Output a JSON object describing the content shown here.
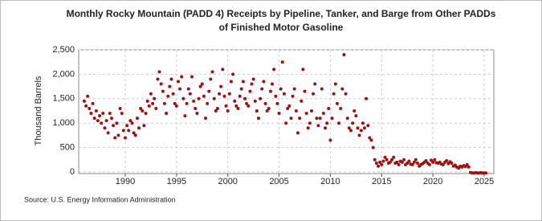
{
  "chart_data": {
    "type": "scatter",
    "title": [
      "Monthly Rocky Mountain (PADD 4) Receipts by Pipeline, Tanker, and Barge from Other PADDs",
      "of Finished Motor Gasoline"
    ],
    "y_label": "Thousand Barrels",
    "source": "Source: U.S. Energy Information Administration",
    "color": "#a01010",
    "grid": true,
    "xlim": [
      1985.46,
      2025.94
    ],
    "xticks": [
      1990,
      1995,
      2000,
      2005,
      2010,
      2015,
      2020,
      2025
    ],
    "ylim": [
      0,
      2500
    ],
    "yticks": [
      0,
      500,
      {
        "value": 1000,
        "label": "1,000"
      },
      {
        "value": 1500,
        "label": "1,500"
      },
      {
        "value": 2000,
        "label": "2,000"
      },
      {
        "value": 2500,
        "label": "2,500"
      }
    ],
    "x": [
      1986,
      1986.17,
      1986.33,
      1986.5,
      1986.67,
      1986.83,
      1987,
      1987.17,
      1987.33,
      1987.5,
      1987.67,
      1987.83,
      1988,
      1988.17,
      1988.33,
      1988.5,
      1988.67,
      1988.83,
      1989,
      1989.17,
      1989.33,
      1989.5,
      1989.67,
      1989.83,
      1990,
      1990.17,
      1990.33,
      1990.5,
      1990.67,
      1990.83,
      1991,
      1991.17,
      1991.33,
      1991.5,
      1991.67,
      1991.83,
      1992,
      1992.17,
      1992.33,
      1992.5,
      1992.67,
      1992.83,
      1993,
      1993.17,
      1993.33,
      1993.5,
      1993.67,
      1993.83,
      1994,
      1994.17,
      1994.33,
      1994.5,
      1994.67,
      1994.83,
      1995,
      1995.17,
      1995.33,
      1995.5,
      1995.67,
      1995.83,
      1996,
      1996.17,
      1996.33,
      1996.5,
      1996.67,
      1996.83,
      1997,
      1997.17,
      1997.33,
      1997.5,
      1997.67,
      1997.83,
      1998,
      1998.17,
      1998.33,
      1998.5,
      1998.67,
      1998.83,
      1999,
      1999.17,
      1999.33,
      1999.5,
      1999.67,
      1999.83,
      2000,
      2000.17,
      2000.33,
      2000.5,
      2000.67,
      2000.83,
      2001,
      2001.17,
      2001.33,
      2001.5,
      2001.67,
      2001.83,
      2002,
      2002.17,
      2002.33,
      2002.5,
      2002.67,
      2002.83,
      2003,
      2003.17,
      2003.33,
      2003.5,
      2003.67,
      2003.83,
      2004,
      2004.17,
      2004.33,
      2004.5,
      2004.67,
      2004.83,
      2005,
      2005.17,
      2005.33,
      2005.5,
      2005.67,
      2005.83,
      2006,
      2006.17,
      2006.33,
      2006.5,
      2006.67,
      2006.83,
      2007,
      2007.17,
      2007.33,
      2007.5,
      2007.67,
      2007.83,
      2008,
      2008.17,
      2008.33,
      2008.5,
      2008.67,
      2008.83,
      2009,
      2009.17,
      2009.33,
      2009.5,
      2009.67,
      2009.83,
      2010,
      2010.17,
      2010.33,
      2010.5,
      2010.67,
      2010.83,
      2011,
      2011.17,
      2011.33,
      2011.5,
      2011.67,
      2011.83,
      2012,
      2012.17,
      2012.33,
      2012.5,
      2012.67,
      2012.83,
      2013,
      2013.17,
      2013.33,
      2013.5,
      2013.67,
      2013.83,
      2014,
      2014.17,
      2014.33,
      2014.5,
      2014.67,
      2014.83,
      2015,
      2015.17,
      2015.33,
      2015.5,
      2015.67,
      2015.83,
      2016,
      2016.17,
      2016.33,
      2016.5,
      2016.67,
      2016.83,
      2017,
      2017.17,
      2017.33,
      2017.5,
      2017.67,
      2017.83,
      2018,
      2018.17,
      2018.33,
      2018.5,
      2018.67,
      2018.83,
      2019,
      2019.17,
      2019.33,
      2019.5,
      2019.67,
      2019.83,
      2020,
      2020.17,
      2020.33,
      2020.5,
      2020.67,
      2020.83,
      2021,
      2021.17,
      2021.33,
      2021.5,
      2021.67,
      2021.83,
      2022,
      2022.17,
      2022.33,
      2022.5,
      2022.67,
      2022.83,
      2023,
      2023.17,
      2023.33,
      2023.5,
      2023.67,
      2023.83,
      2024,
      2024.17,
      2024.33,
      2024.5,
      2024.67,
      2024.83,
      2025,
      2025.17
    ],
    "values": [
      1450,
      1350,
      1550,
      1300,
      1200,
      1400,
      1100,
      1250,
      1050,
      1150,
      1000,
      1200,
      900,
      1050,
      800,
      1200,
      1100,
      950,
      700,
      1000,
      750,
      1300,
      1200,
      850,
      700,
      950,
      850,
      1050,
      1000,
      800,
      750,
      1100,
      900,
      1300,
      1250,
      950,
      1200,
      1450,
      1350,
      1600,
      1400,
      1500,
      1300,
      1900,
      2050,
      1800,
      1650,
      1400,
      1200,
      1550,
      1750,
      1900,
      1600,
      1400,
      1350,
      1850,
      1700,
      1950,
      1500,
      1150,
      1400,
      1700,
      1600,
      1950,
      1450,
      1300,
      1200,
      1500,
      1750,
      1800,
      1550,
      1100,
      1400,
      1650,
      1900,
      2050,
      1500,
      1250,
      1300,
      1600,
      1750,
      2100,
      1550,
      1350,
      1250,
      1600,
      1850,
      2000,
      1450,
      1350,
      1300,
      1550,
      1700,
      1850,
      1500,
      1400,
      1350,
      1650,
      1800,
      1900,
      1450,
      1250,
      1100,
      1500,
      1700,
      1850,
      1400,
      1250,
      1300,
      1650,
      1800,
      2100,
      1550,
      1400,
      1200,
      1700,
      2250,
      1600,
      1000,
      1300,
      1350,
      1100,
      1550,
      1700,
      1250,
      800,
      1100,
      1450,
      2100,
      1650,
      1200,
      900,
      1000,
      1250,
      1600,
      1800,
      1100,
      950,
      1100,
      1700,
      1200,
      900,
      1000,
      1300,
      650,
      1100,
      1600,
      1800,
      1400,
      1000,
      1300,
      1700,
      2400,
      1600,
      1100,
      900,
      850,
      1000,
      1250,
      1150,
      900,
      750,
      850,
      1000,
      900,
      1500,
      950,
      700,
      650,
      500,
      250,
      180,
      120,
      200,
      150,
      220,
      300,
      250,
      180,
      200,
      250,
      300,
      180,
      200,
      150,
      220,
      200,
      250,
      150,
      180,
      220,
      160,
      150,
      200,
      250,
      180,
      120,
      150,
      170,
      200,
      230,
      180,
      150,
      240,
      200,
      250,
      190,
      180,
      200,
      160,
      150,
      200,
      230,
      170,
      210,
      180,
      120,
      140,
      100,
      80,
      120,
      100,
      130,
      110,
      150,
      100,
      -10,
      -20,
      -20,
      -15,
      -20,
      -20,
      -15,
      -20,
      -20,
      -20
    ]
  }
}
